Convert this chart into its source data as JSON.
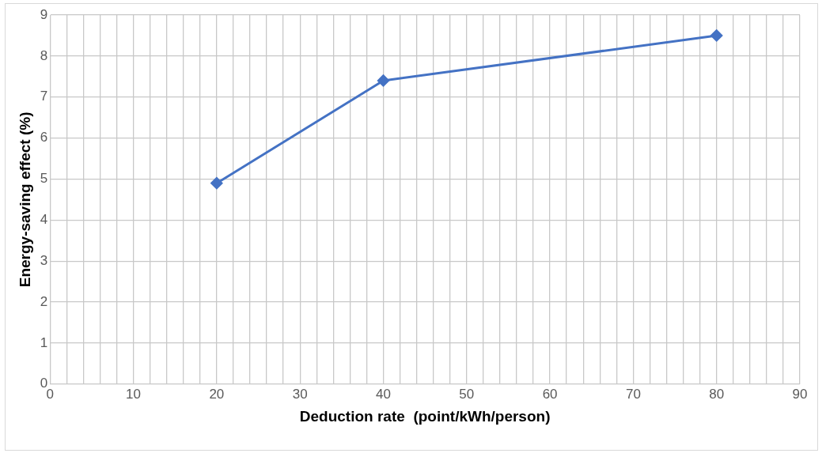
{
  "chart_data": {
    "type": "line",
    "xlabel": "Deduction rate  (point/kWh/person)",
    "ylabel": "Energy-saving effect (%)",
    "x": [
      20,
      40,
      80
    ],
    "series": [
      {
        "color": "#4472c4",
        "values": [
          4.9,
          7.4,
          8.5
        ]
      }
    ],
    "xlim": [
      0,
      90
    ],
    "xticks": [
      0,
      {
        "value": 2,
        "label": null
      },
      {
        "value": 4,
        "label": null
      },
      {
        "value": 6,
        "label": null
      },
      {
        "value": 8,
        "label": null
      },
      10,
      {
        "value": 12,
        "label": null
      },
      {
        "value": 14,
        "label": null
      },
      {
        "value": 16,
        "label": null
      },
      {
        "value": 18,
        "label": null
      },
      20,
      {
        "value": 22,
        "label": null
      },
      {
        "value": 24,
        "label": null
      },
      {
        "value": 26,
        "label": null
      },
      {
        "value": 28,
        "label": null
      },
      30,
      {
        "value": 32,
        "label": null
      },
      {
        "value": 34,
        "label": null
      },
      {
        "value": 36,
        "label": null
      },
      {
        "value": 38,
        "label": null
      },
      40,
      {
        "value": 42,
        "label": null
      },
      {
        "value": 44,
        "label": null
      },
      {
        "value": 46,
        "label": null
      },
      {
        "value": 48,
        "label": null
      },
      50,
      {
        "value": 52,
        "label": null
      },
      {
        "value": 54,
        "label": null
      },
      {
        "value": 56,
        "label": null
      },
      {
        "value": 58,
        "label": null
      },
      60,
      {
        "value": 62,
        "label": null
      },
      {
        "value": 64,
        "label": null
      },
      {
        "value": 66,
        "label": null
      },
      {
        "value": 68,
        "label": null
      },
      70,
      {
        "value": 72,
        "label": null
      },
      {
        "value": 74,
        "label": null
      },
      {
        "value": 76,
        "label": null
      },
      {
        "value": 78,
        "label": null
      },
      80,
      {
        "value": 82,
        "label": null
      },
      {
        "value": 84,
        "label": null
      },
      {
        "value": 86,
        "label": null
      },
      {
        "value": 88,
        "label": null
      },
      90
    ],
    "ylim": [
      0,
      9
    ],
    "yticks": [
      0,
      1,
      2,
      3,
      4,
      5,
      6,
      7,
      8,
      9
    ],
    "grid": true,
    "legend": false,
    "marker": "diamond",
    "line_style": "solid"
  }
}
